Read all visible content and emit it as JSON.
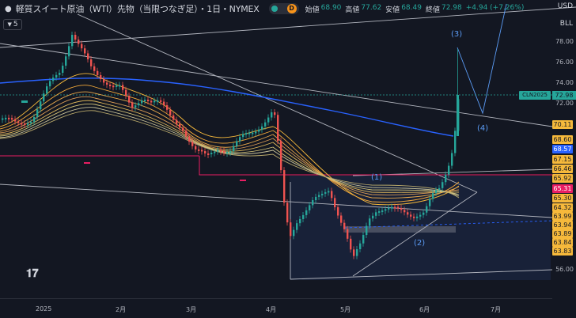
{
  "header": {
    "title": "軽質スイート原油（WTI）先物（当限つなぎ足）・1日・NYMEX",
    "ohlc": [
      {
        "label": "始値",
        "value": "68.90"
      },
      {
        "label": "高値",
        "value": "77.62"
      },
      {
        "label": "安値",
        "value": "68.49"
      },
      {
        "label": "終値",
        "value": "72.98"
      }
    ],
    "change": "+4.94 (+7.26%)",
    "pill_letter": "D"
  },
  "interval": {
    "value": "5"
  },
  "corner": {
    "currency": "USD",
    "unit": "BLL"
  },
  "symbol_label": "CLN2025",
  "last_price": "72.98",
  "wave_labels": [
    "(1)",
    "(2)",
    "(3)",
    "(4)"
  ],
  "price_ticks": [
    "78.00",
    "76.00",
    "74.00",
    "72.00",
    "56.00"
  ],
  "price_badges": [
    {
      "text": "70.11",
      "color": "#f6b93b"
    },
    {
      "text": "68.60",
      "color": "#f6b93b"
    },
    {
      "text": "68.57",
      "color": "#2962ff"
    },
    {
      "text": "67.15",
      "color": "#f6b93b"
    },
    {
      "text": "66.46",
      "color": "#f6b93b"
    },
    {
      "text": "65.92",
      "color": "#f6b93b"
    },
    {
      "text": "65.31",
      "color": "#e91e63"
    },
    {
      "text": "65.30",
      "color": "#f6b93b"
    },
    {
      "text": "64.32",
      "color": "#f6b93b"
    },
    {
      "text": "63.99",
      "color": "#f6b93b"
    },
    {
      "text": "63.94",
      "color": "#f6b93b"
    },
    {
      "text": "63.89",
      "color": "#f6b93b"
    },
    {
      "text": "63.84",
      "color": "#f6b93b"
    },
    {
      "text": "63.83",
      "color": "#f6b93b"
    }
  ],
  "time_ticks": [
    "2025",
    "2月",
    "3月",
    "4月",
    "5月",
    "6月",
    "7月"
  ],
  "colors": {
    "background": "#131722",
    "up": "#26a69a",
    "down": "#ef5350",
    "ema_fast": "#f6b93b",
    "ema_slow": "#2962ff",
    "support": "#e91e63"
  }
}
